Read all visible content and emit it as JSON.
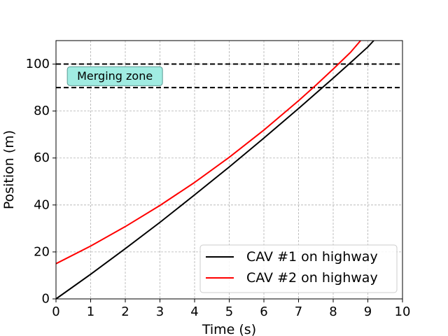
{
  "chart_data": {
    "type": "line",
    "xlabel": "Time (s)",
    "ylabel": "Position (m)",
    "xlim": [
      0,
      10
    ],
    "ylim": [
      0,
      110
    ],
    "xticks": [
      0,
      1,
      2,
      3,
      4,
      5,
      6,
      7,
      8,
      9,
      10
    ],
    "yticks": [
      0,
      20,
      40,
      60,
      80,
      100
    ],
    "grid": true,
    "legend_position": "lower-right",
    "series": [
      {
        "name": "CAV #1 on highway",
        "color": "#000000",
        "x": [
          0,
          1,
          2,
          3,
          4,
          5,
          6,
          7,
          8,
          8.5,
          9,
          9.17
        ],
        "y": [
          0,
          10.5,
          21.4,
          32.6,
          44.3,
          56.2,
          68.5,
          81.1,
          94.0,
          100.6,
          107.3,
          110
        ]
      },
      {
        "name": "CAV #2 on highway",
        "color": "#ff0000",
        "x": [
          0,
          1,
          2,
          3,
          4,
          5,
          6,
          7,
          7.5,
          8,
          8.5,
          8.79
        ],
        "y": [
          15,
          22.5,
          30.8,
          39.8,
          49.6,
          60.3,
          71.9,
          84.4,
          91.0,
          97.9,
          105.0,
          110
        ]
      }
    ],
    "reference_lines": [
      {
        "y": 100,
        "style": "dashed",
        "color": "#000000"
      },
      {
        "y": 90,
        "style": "dashed",
        "color": "#000000"
      }
    ],
    "annotations": [
      {
        "text": "Merging zone",
        "x": 1.7,
        "y": 95,
        "box_color": "#a0ece2"
      }
    ]
  }
}
